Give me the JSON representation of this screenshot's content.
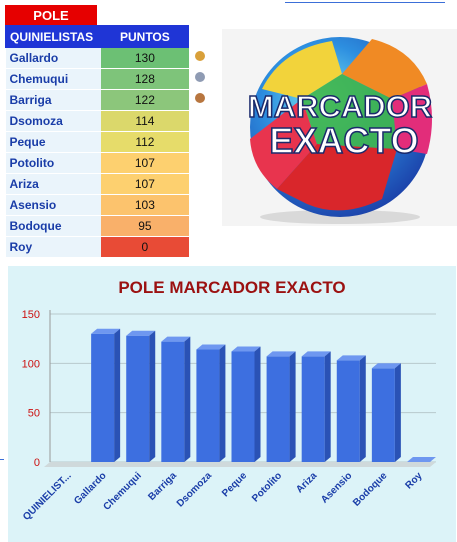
{
  "table": {
    "pole_label": "POLE",
    "headers": {
      "name": "QUINIELISTAS",
      "points": "PUNTOS"
    },
    "rows": [
      {
        "name": "Gallardo",
        "points": "130",
        "color": "#6cc074",
        "medal": "gold"
      },
      {
        "name": "Chemuqui",
        "points": "128",
        "color": "#7ec47a",
        "medal": "silver"
      },
      {
        "name": "Barriga",
        "points": "122",
        "color": "#8cc67b",
        "medal": "bronze"
      },
      {
        "name": "Dsomoza",
        "points": "114",
        "color": "#dbd86b",
        "medal": null
      },
      {
        "name": "Peque",
        "points": "112",
        "color": "#e6dc6a",
        "medal": null
      },
      {
        "name": "Potolito",
        "points": "107",
        "color": "#fdd06f",
        "medal": null
      },
      {
        "name": "Ariza",
        "points": "107",
        "color": "#fdd06f",
        "medal": null
      },
      {
        "name": "Asensio",
        "points": "103",
        "color": "#fcc36d",
        "medal": null
      },
      {
        "name": "Bodoque",
        "points": "95",
        "color": "#f9b06a",
        "medal": null
      },
      {
        "name": "Roy",
        "points": "0",
        "color": "#e84b36",
        "medal": null
      }
    ]
  },
  "banner": {
    "line1": "MARCADOR",
    "line2": "EXACTO"
  },
  "chart_data": {
    "type": "bar",
    "title": "POLE MARCADOR EXACTO",
    "categories": [
      "QUINIELISTAS",
      "Gallardo",
      "Chemuqui",
      "Barriga",
      "Dsomoza",
      "Peque",
      "Potolito",
      "Ariza",
      "Asensio",
      "Bodoque",
      "Roy"
    ],
    "category_labels": [
      "QUINIELIST...",
      "Gallardo",
      "Chemuqui",
      "Barriga",
      "Dsomoza",
      "Peque",
      "Potolito",
      "Ariza",
      "Asensio",
      "Bodoque",
      "Roy"
    ],
    "values": [
      0,
      130,
      128,
      122,
      114,
      112,
      107,
      107,
      103,
      95,
      0
    ],
    "yticks": [
      "0",
      "50",
      "100",
      "150"
    ],
    "ylim": [
      0,
      150
    ],
    "grid": true,
    "bar_color": "#3d6fe0"
  },
  "medal_colors": {
    "gold": "#d9a03a",
    "silver": "#8f9bb3",
    "bronze": "#b8763f"
  }
}
